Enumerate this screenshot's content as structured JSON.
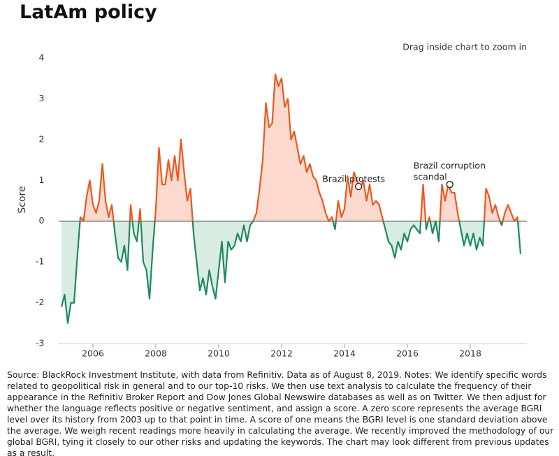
{
  "chart_data": {
    "type": "line",
    "title": "LatAm policy",
    "hint": "Drag inside chart to zoom in",
    "y_label": "Score",
    "xlim": [
      2004.9,
      2019.8
    ],
    "ylim": [
      -3,
      4
    ],
    "xticks": [
      2006,
      2008,
      2010,
      2012,
      2014,
      2016,
      2018
    ],
    "yticks": [
      -3,
      -2,
      -1,
      0,
      1,
      2,
      3,
      4
    ],
    "positive_color": "#f0561d",
    "negative_color": "#1e8a5a",
    "positive_fill": "#fbd9cf",
    "negative_fill": "#d8ece2",
    "x": [
      2005.0,
      2005.1,
      2005.2,
      2005.3,
      2005.4,
      2005.5,
      2005.6,
      2005.7,
      2005.8,
      2005.9,
      2006.0,
      2006.1,
      2006.2,
      2006.3,
      2006.4,
      2006.5,
      2006.6,
      2006.7,
      2006.8,
      2006.9,
      2007.0,
      2007.1,
      2007.2,
      2007.3,
      2007.4,
      2007.5,
      2007.6,
      2007.7,
      2007.8,
      2007.9,
      2008.0,
      2008.1,
      2008.2,
      2008.3,
      2008.4,
      2008.5,
      2008.6,
      2008.7,
      2008.8,
      2008.9,
      2009.0,
      2009.1,
      2009.2,
      2009.3,
      2009.4,
      2009.5,
      2009.6,
      2009.7,
      2009.8,
      2009.9,
      2010.0,
      2010.1,
      2010.2,
      2010.3,
      2010.4,
      2010.5,
      2010.6,
      2010.7,
      2010.8,
      2010.9,
      2011.0,
      2011.1,
      2011.2,
      2011.3,
      2011.4,
      2011.5,
      2011.6,
      2011.7,
      2011.8,
      2011.9,
      2012.0,
      2012.1,
      2012.2,
      2012.3,
      2012.4,
      2012.5,
      2012.6,
      2012.7,
      2012.8,
      2012.9,
      2013.0,
      2013.1,
      2013.2,
      2013.3,
      2013.4,
      2013.5,
      2013.6,
      2013.7,
      2013.8,
      2013.9,
      2014.0,
      2014.1,
      2014.2,
      2014.3,
      2014.4,
      2014.5,
      2014.6,
      2014.7,
      2014.8,
      2014.9,
      2015.0,
      2015.1,
      2015.2,
      2015.3,
      2015.4,
      2015.5,
      2015.6,
      2015.7,
      2015.8,
      2015.9,
      2016.0,
      2016.1,
      2016.2,
      2016.3,
      2016.4,
      2016.5,
      2016.6,
      2016.7,
      2016.8,
      2016.9,
      2017.0,
      2017.1,
      2017.2,
      2017.3,
      2017.4,
      2017.5,
      2017.6,
      2017.7,
      2017.8,
      2017.9,
      2018.0,
      2018.1,
      2018.2,
      2018.3,
      2018.4,
      2018.5,
      2018.6,
      2018.7,
      2018.8,
      2018.9,
      2019.0,
      2019.1,
      2019.2,
      2019.3,
      2019.4,
      2019.5,
      2019.6
    ],
    "values": [
      -2.1,
      -1.8,
      -2.5,
      -2.0,
      -2.0,
      -0.9,
      0.1,
      0.0,
      0.6,
      1.0,
      0.4,
      0.2,
      0.5,
      1.4,
      0.5,
      0.1,
      0.4,
      -0.3,
      -0.9,
      -1.0,
      -0.6,
      -1.2,
      0.4,
      -0.3,
      -0.5,
      0.3,
      -1.0,
      -1.2,
      -1.9,
      -0.7,
      0.3,
      1.8,
      0.9,
      0.9,
      1.5,
      1.0,
      1.6,
      1.0,
      2.0,
      1.2,
      0.5,
      0.8,
      -0.3,
      -1.0,
      -1.7,
      -1.4,
      -1.8,
      -1.2,
      -1.6,
      -1.9,
      -1.2,
      -0.5,
      -1.5,
      -0.5,
      -0.7,
      -0.6,
      -0.3,
      -0.5,
      -0.1,
      -0.5,
      -0.1,
      0.0,
      0.2,
      0.8,
      1.5,
      2.9,
      2.3,
      2.4,
      3.6,
      3.3,
      3.5,
      2.8,
      3.0,
      2.0,
      2.2,
      1.8,
      1.4,
      1.6,
      1.2,
      1.4,
      1.1,
      1.0,
      0.7,
      0.5,
      0.2,
      0.0,
      0.1,
      -0.2,
      0.5,
      0.1,
      0.3,
      1.1,
      0.6,
      1.2,
      1.0,
      0.8,
      1.0,
      0.5,
      0.9,
      0.4,
      0.5,
      0.4,
      0.1,
      -0.2,
      -0.5,
      -0.6,
      -0.9,
      -0.5,
      -0.7,
      -0.3,
      -0.5,
      -0.2,
      -0.1,
      -0.2,
      -0.3,
      0.9,
      -0.2,
      0.1,
      -0.3,
      0.0,
      -0.5,
      0.9,
      0.5,
      0.9,
      0.7,
      0.7,
      0.2,
      -0.2,
      -0.6,
      -0.3,
      -0.6,
      -0.3,
      -0.7,
      -0.4,
      -0.6,
      0.8,
      0.6,
      0.2,
      0.4,
      0.1,
      -0.1,
      0.2,
      0.4,
      0.2,
      0.0,
      0.1,
      -0.8
    ],
    "annotations": [
      {
        "lines": [
          "Brazil protests"
        ],
        "x": 2014.45,
        "y": 0.85
      },
      {
        "lines": [
          "Brazil corruption",
          "scandal"
        ],
        "x": 2017.35,
        "y": 0.9
      }
    ],
    "notes": "Source: BlackRock Investment Institute, with data from Refinitiv. Data as of August 8, 2019. Notes: We identify specific words related to geopolitical risk in general and to our top-10 risks. We then use text analysis to calculate the frequency of their appearance in the Refinitiv Broker Report and Dow Jones Global Newswire databases as well as on Twitter. We then adjust for whether the language reflects positive or negative sentiment, and assign a score. A zero score represents the average BGRI level over its history from 2003 up to that point in time. A score of one means the BGRI level is one standard deviation above the average. We weigh recent readings more heavily in calculating the average. We recently improved the methodology of our global BGRI, tying it closely to our other risks and updating the keywords. The chart may look different from previous updates as a result."
  }
}
